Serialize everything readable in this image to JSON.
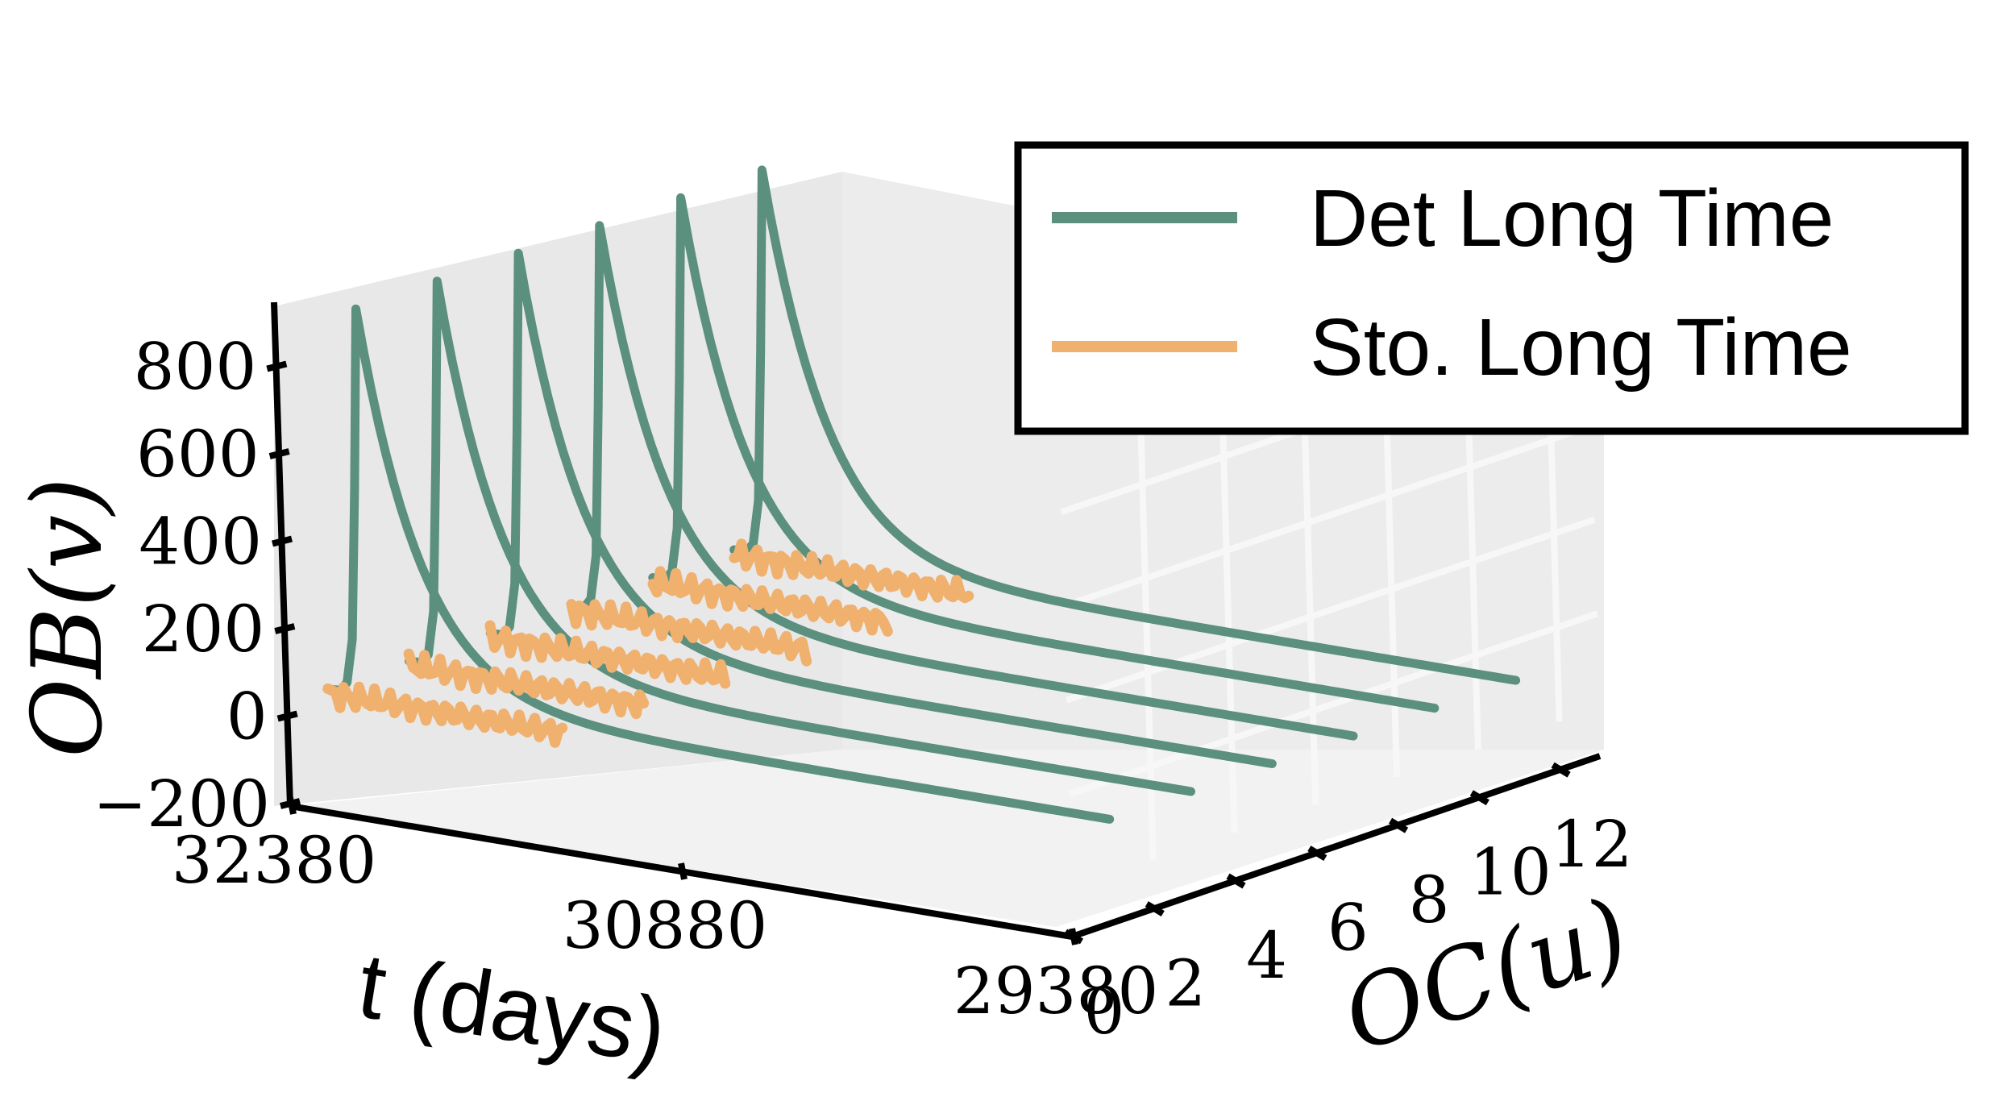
{
  "chart_data": {
    "type": "line",
    "projection": "3d",
    "x_axis": {
      "label": "t (days)",
      "ticks": [
        "32380",
        "30880",
        "29380"
      ],
      "range": [
        32380,
        29380
      ]
    },
    "y_axis": {
      "label": "OC(u)",
      "ticks": [
        "0",
        "2",
        "4",
        "6",
        "8",
        "10",
        "12"
      ],
      "range": [
        0,
        13
      ]
    },
    "z_axis": {
      "label": "OB(v)",
      "ticks": [
        "-200",
        "0",
        "200",
        "400",
        "600",
        "800"
      ],
      "range": [
        -200,
        1000
      ]
    },
    "legend": {
      "placement": "top-right",
      "entries": [
        {
          "label": "Det Long Time",
          "color": "#5b8f7e"
        },
        {
          "label": "Sto. Long Time",
          "color": "#f0b06e"
        }
      ]
    },
    "series": [
      {
        "name": "Det Long Time",
        "color": "#5b8f7e",
        "u_values": [
          1,
          3,
          5,
          7,
          9,
          11
        ],
        "peak": 880,
        "baseline": 20
      },
      {
        "name": "Sto. Long Time",
        "color": "#f0b06e",
        "u_values": [
          1,
          3,
          5,
          7,
          9,
          11
        ],
        "baseline": 10
      }
    ],
    "grid": true
  }
}
